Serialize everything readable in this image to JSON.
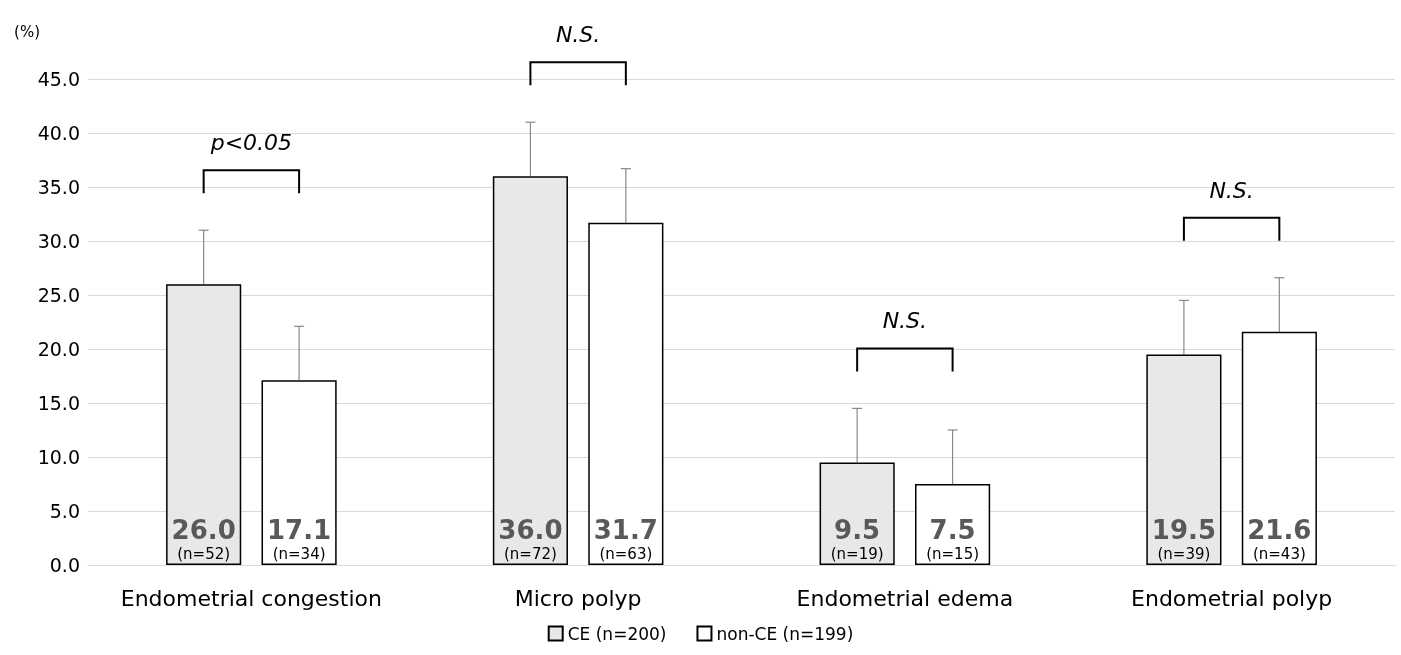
{
  "chart_data": {
    "type": "bar",
    "ylabel": "(%)",
    "categories": [
      "Endometrial congestion",
      "Micro polyp",
      "Endometrial edema",
      "Endometrial polyp"
    ],
    "series": [
      {
        "name": "CE (n=200)",
        "color": "#e8e8e8",
        "values": [
          26.0,
          36.0,
          9.5,
          19.5
        ],
        "errors": [
          [
            26.0,
            31.0
          ],
          [
            36.0,
            41.0
          ],
          [
            9.5,
            14.5
          ],
          [
            19.5,
            24.5
          ]
        ],
        "value_labels": [
          "26.0\n(n=52)",
          "36.0\n(n=72)",
          "9.5\n(n=19)",
          "19.5\n(n=39)"
        ]
      },
      {
        "name": "non-CE (n=199)",
        "color": "#ffffff",
        "values": [
          17.1,
          31.7,
          7.5,
          21.6
        ],
        "errors": [
          [
            17.1,
            22.1
          ],
          [
            31.7,
            36.7
          ],
          [
            7.5,
            12.5
          ],
          [
            21.6,
            26.6
          ]
        ],
        "value_labels": [
          "17.1\n(n=34)",
          "31.7\n(n=63)",
          "7.5\n(n=15)",
          "21.6\n(n=43)"
        ]
      }
    ],
    "annotations": [
      "p<0.05",
      "N.S.",
      "N.S.",
      "N.S."
    ],
    "ylim": [
      0,
      45
    ],
    "yticks": [
      {
        "value": 0,
        "label": "0.0"
      },
      {
        "value": 5,
        "label": "5.0"
      },
      {
        "value": 10,
        "label": "10.0"
      },
      {
        "value": 15,
        "label": "15.0"
      },
      {
        "value": 20,
        "label": "20.0"
      },
      {
        "value": 25,
        "label": "25.0"
      },
      {
        "value": 30,
        "label": "30.0"
      },
      {
        "value": 35,
        "label": "35.0"
      },
      {
        "value": 40,
        "label": "40.0"
      },
      {
        "value": 45,
        "label": "45.0"
      }
    ],
    "grid": "y",
    "legend": "bottom"
  }
}
